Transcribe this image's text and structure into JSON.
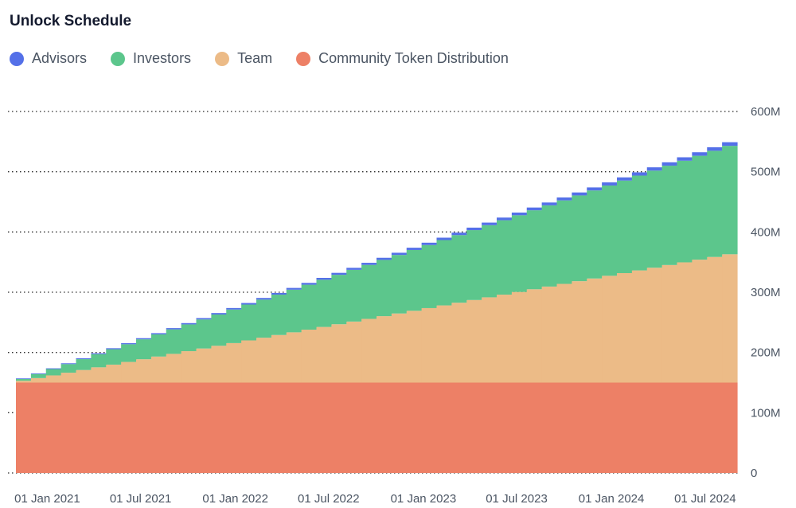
{
  "title": "Unlock Schedule",
  "legend": [
    {
      "label": "Advisors",
      "color": "#5470e8"
    },
    {
      "label": "Investors",
      "color": "#5cc68c"
    },
    {
      "label": "Team",
      "color": "#ecbb87"
    },
    {
      "label": "Community Token Distribution",
      "color": "#ed8066"
    }
  ],
  "chart_data": {
    "type": "area",
    "title": "Unlock Schedule",
    "stacked": true,
    "step": true,
    "xlabel": "",
    "ylabel": "",
    "x_start": "2020-11-01",
    "x_end": "2024-09-01",
    "x_ticks": [
      "01 Jan 2021",
      "01 Jul 2021",
      "01 Jan 2022",
      "01 Jul 2022",
      "01 Jan 2023",
      "01 Jul 2023",
      "01 Jan 2024",
      "01 Jul 2024"
    ],
    "y_ticks": [
      "0",
      "100M",
      "200M",
      "300M",
      "400M",
      "500M",
      "600M"
    ],
    "y_tick_values": [
      0,
      100000000,
      200000000,
      300000000,
      400000000,
      500000000,
      600000000
    ],
    "ylim": [
      0,
      600000000
    ],
    "grid": "horizontal-dotted",
    "legend_position": "top-left",
    "unlock_steps": 48,
    "series": [
      {
        "name": "Community Token Distribution",
        "color": "#ed8066",
        "start": 150000000,
        "end": 150000000
      },
      {
        "name": "Team",
        "color": "#ecbb87",
        "start": 3000000,
        "end": 213000000
      },
      {
        "name": "Investors",
        "color": "#5cc68c",
        "start": 3000000,
        "end": 180000000
      },
      {
        "name": "Advisors",
        "color": "#5470e8",
        "start": 1000000,
        "end": 6000000
      }
    ]
  }
}
